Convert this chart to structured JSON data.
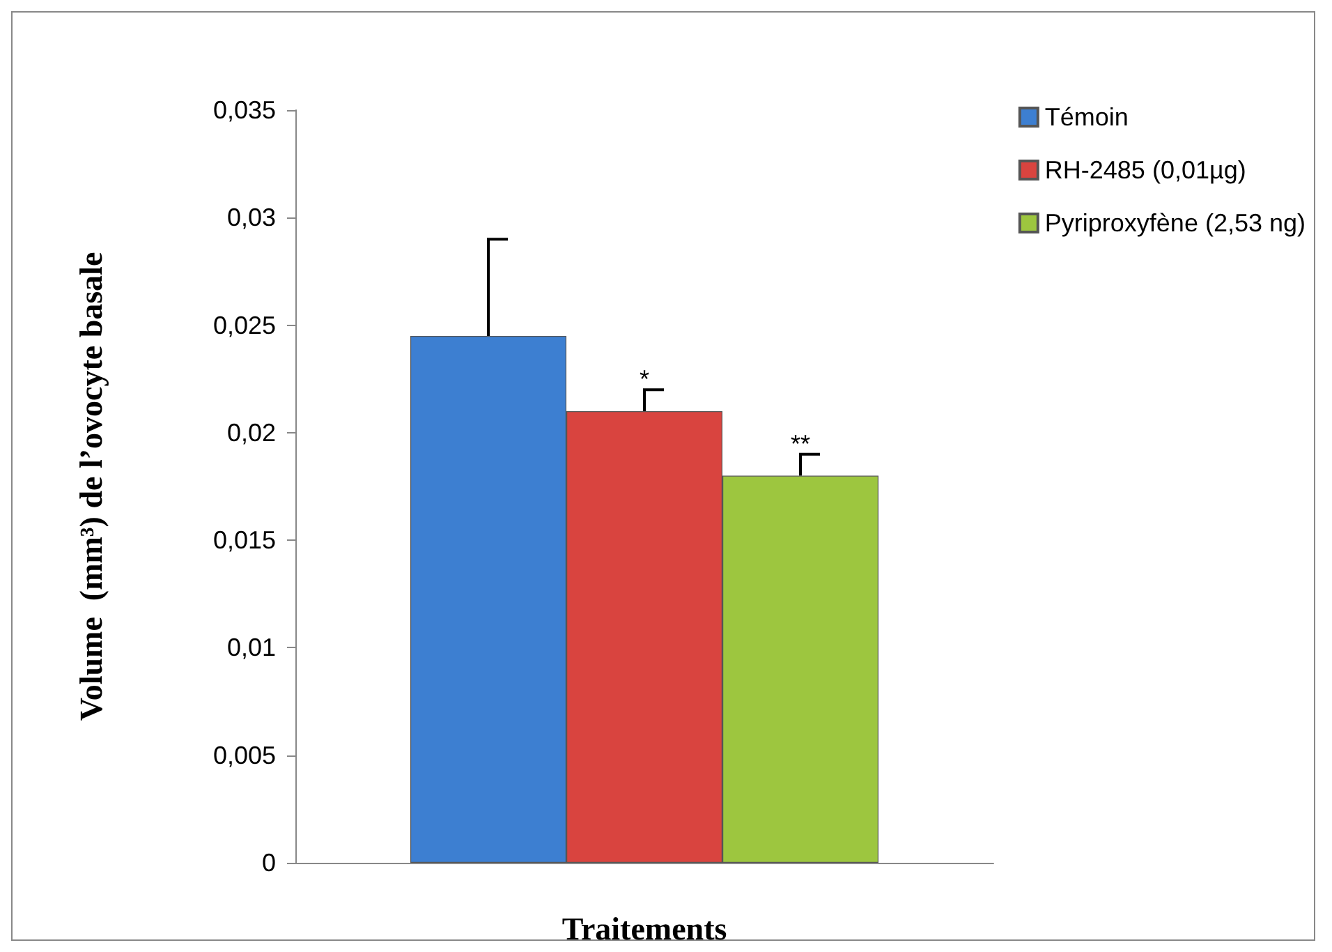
{
  "chart_data": {
    "type": "bar",
    "xlabel": "Traitements",
    "ylabel": "Volume  (mm³) de l’ovocyte basale",
    "categories": [
      null
    ],
    "series": [
      {
        "name": "Témoin",
        "color": "#3d7fd1",
        "values": [
          0.0245
        ],
        "errors": [
          [
            0.0245,
            0.029
          ]
        ]
      },
      {
        "name": "RH-2485 (0,01µg)",
        "color": "#d9443f",
        "values": [
          0.021
        ],
        "errors": [
          [
            0.021,
            0.022
          ]
        ],
        "value_labels": [
          "*"
        ]
      },
      {
        "name": "Pyriproxyfène (2,53 ng)",
        "color": "#9dc63f",
        "values": [
          0.018
        ],
        "errors": [
          [
            0.018,
            0.019
          ]
        ],
        "value_labels": [
          "**"
        ]
      }
    ],
    "ylim": [
      0,
      0.035
    ],
    "yticks": [
      {
        "value": 0,
        "label": "0"
      },
      {
        "value": 0.005,
        "label": "0,005"
      },
      {
        "value": 0.01,
        "label": "0,01"
      },
      {
        "value": 0.015,
        "label": "0,015"
      },
      {
        "value": 0.02,
        "label": "0,02"
      },
      {
        "value": 0.025,
        "label": "0,025"
      },
      {
        "value": 0.03,
        "label": "0,03"
      },
      {
        "value": 0.035,
        "label": "0,035"
      }
    ],
    "grid": false,
    "legend": "top right"
  }
}
